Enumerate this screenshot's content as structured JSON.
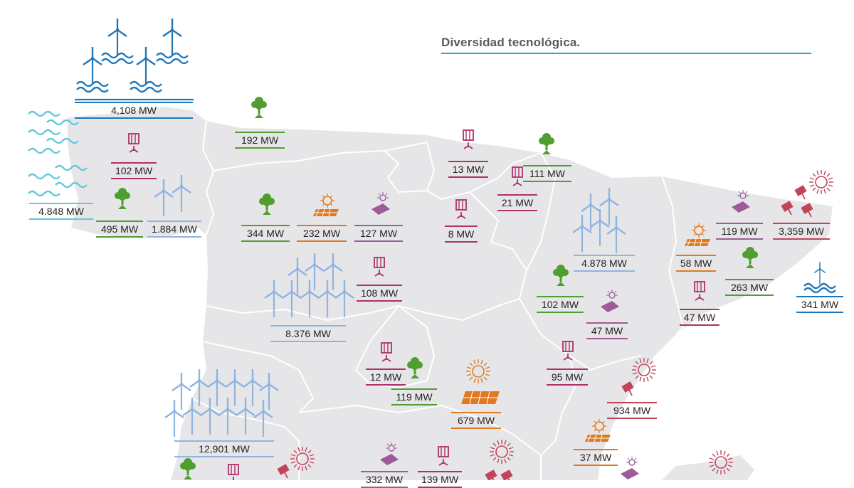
{
  "title": "Diversidad tecnológica.",
  "colors": {
    "offshore_wind": "#1f76b8",
    "marine": "#63c7dc",
    "wind": "#8fb4e0",
    "biomass": "#4f9e2e",
    "hydro": "#b0306a",
    "solar_pv": "#e07a22",
    "solar_thermal": "#c0455a",
    "waste": "#9e5a9a",
    "land": "#e6e6e8"
  },
  "labels": [
    {
      "id": "galicia-offshore",
      "text": "4,108 MW",
      "icon": "offshore-wind-icon",
      "tech": "offshore_wind"
    },
    {
      "id": "galicia-marine",
      "text": "4.848 MW",
      "icon": "wave-icon",
      "tech": "marine"
    },
    {
      "id": "galicia-hydro",
      "text": "102 MW",
      "icon": "hydro-icon",
      "tech": "hydro"
    },
    {
      "id": "galicia-biomass",
      "text": "495 MW",
      "icon": "tree-icon",
      "tech": "biomass"
    },
    {
      "id": "galicia-wind",
      "text": "1.884 MW",
      "icon": "wind-turbine-icon",
      "tech": "wind"
    },
    {
      "id": "asturias-biomass",
      "text": "192 MW",
      "icon": "tree-icon",
      "tech": "biomass"
    },
    {
      "id": "cyl-biomass",
      "text": "344 MW",
      "icon": "tree-icon",
      "tech": "biomass"
    },
    {
      "id": "cyl-solar",
      "text": "232 MW",
      "icon": "solar-panel-icon",
      "tech": "solar_pv"
    },
    {
      "id": "cyl-waste",
      "text": "127 MW",
      "icon": "waste-icon",
      "tech": "waste"
    },
    {
      "id": "cyl-hydro",
      "text": "108 MW",
      "icon": "hydro-icon",
      "tech": "hydro"
    },
    {
      "id": "cyl-wind",
      "text": "8.376 MW",
      "icon": "wind-turbine-icon",
      "tech": "wind"
    },
    {
      "id": "paisvasco-hydro",
      "text": "13 MW",
      "icon": "hydro-icon",
      "tech": "hydro"
    },
    {
      "id": "navarra-biomass",
      "text": "111 MW",
      "icon": "tree-icon",
      "tech": "biomass"
    },
    {
      "id": "navarra-hydro",
      "text": "21 MW",
      "icon": "hydro-icon",
      "tech": "hydro"
    },
    {
      "id": "rioja-hydro",
      "text": "8 MW",
      "icon": "hydro-icon",
      "tech": "hydro"
    },
    {
      "id": "aragon-wind",
      "text": "4.878 MW",
      "icon": "wind-turbine-icon",
      "tech": "wind"
    },
    {
      "id": "aragon-biomass",
      "text": "102 MW",
      "icon": "tree-icon",
      "tech": "biomass"
    },
    {
      "id": "aragon-waste",
      "text": "47 MW",
      "icon": "waste-icon",
      "tech": "waste"
    },
    {
      "id": "aragon-hydro",
      "text": "95 MW",
      "icon": "hydro-icon",
      "tech": "hydro"
    },
    {
      "id": "cataluna-waste",
      "text": "119 MW",
      "icon": "waste-icon",
      "tech": "waste"
    },
    {
      "id": "cataluna-solarthermal",
      "text": "3,359 MW",
      "icon": "solar-thermal-icon",
      "tech": "solar_thermal"
    },
    {
      "id": "cataluna-solar",
      "text": "58 MW",
      "icon": "solar-panel-icon",
      "tech": "solar_pv"
    },
    {
      "id": "cataluna-biomass",
      "text": "263 MW",
      "icon": "tree-icon",
      "tech": "biomass"
    },
    {
      "id": "cataluna-hydro",
      "text": "47 MW",
      "icon": "hydro-icon",
      "tech": "hydro"
    },
    {
      "id": "cataluna-offshore",
      "text": "341 MW",
      "icon": "offshore-wind-icon",
      "tech": "offshore_wind"
    },
    {
      "id": "madrid-hydro",
      "text": "12 MW",
      "icon": "hydro-icon",
      "tech": "hydro"
    },
    {
      "id": "madrid-biomass",
      "text": "119 MW",
      "icon": "tree-icon",
      "tech": "biomass"
    },
    {
      "id": "clm-solar",
      "text": "679 MW",
      "icon": "solar-panel-icon",
      "tech": "solar_pv"
    },
    {
      "id": "valencia-solarthermal",
      "text": "934 MW",
      "icon": "solar-thermal-icon",
      "tech": "solar_thermal"
    },
    {
      "id": "valencia-solar",
      "text": "37 MW",
      "icon": "solar-panel-icon",
      "tech": "solar_pv"
    },
    {
      "id": "extremadura-wind",
      "text": "12,901 MW",
      "icon": "wind-turbine-icon",
      "tech": "wind"
    },
    {
      "id": "clm-waste",
      "text": "332 MW",
      "icon": "waste-icon",
      "tech": "waste"
    },
    {
      "id": "clm-hydro",
      "text": "139 MW",
      "icon": "hydro-icon",
      "tech": "hydro"
    }
  ]
}
